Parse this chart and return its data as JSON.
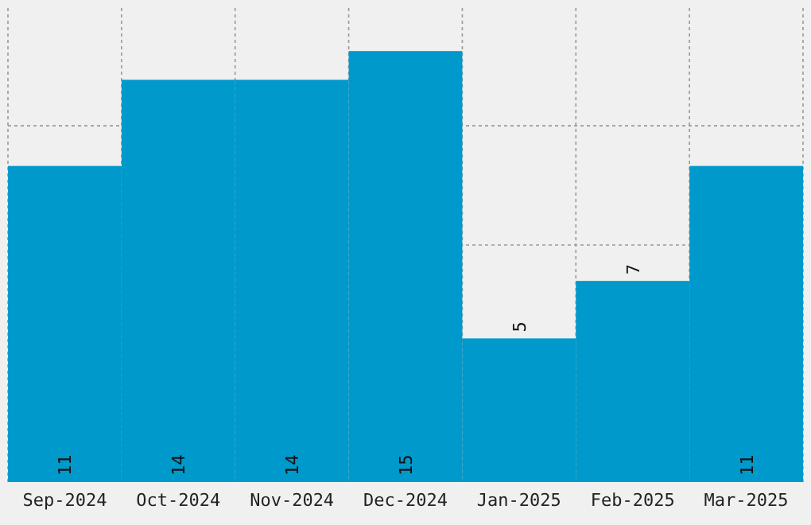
{
  "chart_data": {
    "type": "bar",
    "categories": [
      "Sep-2024",
      "Oct-2024",
      "Nov-2024",
      "Dec-2024",
      "Jan-2025",
      "Feb-2025",
      "Mar-2025"
    ],
    "values": [
      11,
      14,
      14,
      15,
      5,
      7,
      11
    ],
    "color": "#0099cc",
    "ylim": [
      0,
      16.5
    ],
    "yticks": [
      {
        "value": 4.1,
        "label": null
      },
      {
        "value": 8.25,
        "label": null
      },
      {
        "value": 12.4,
        "label": null
      }
    ],
    "grid": true,
    "data_labels": true
  }
}
